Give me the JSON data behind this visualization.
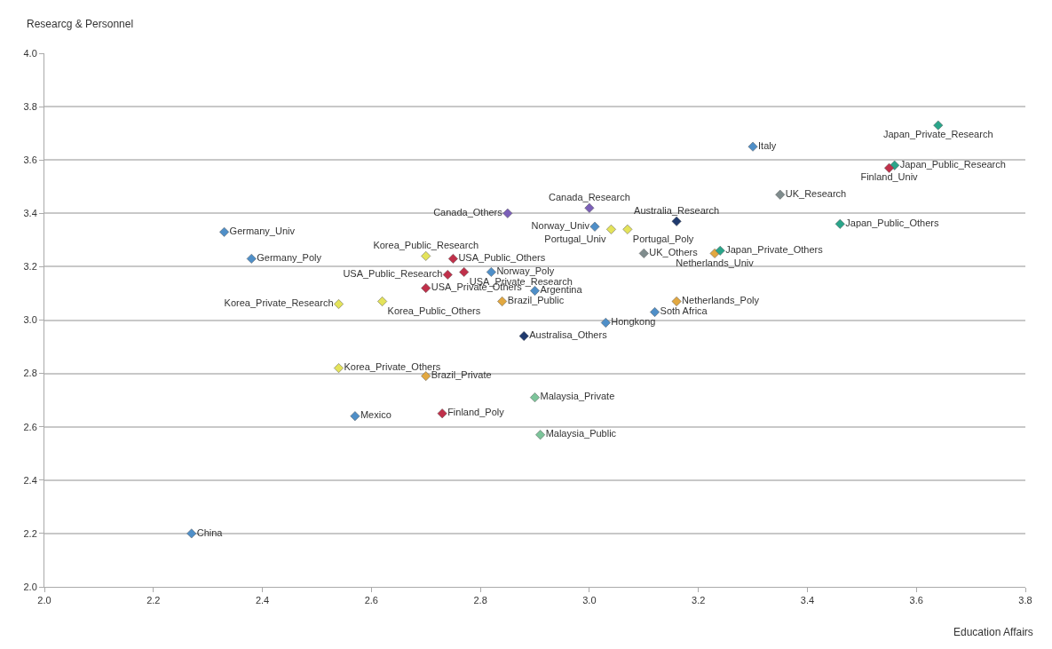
{
  "chart_data": {
    "type": "scatter",
    "xlabel": "Education Affairs",
    "ylabel": "Researcg & Personnel",
    "xlim": [
      2.0,
      3.8
    ],
    "ylim": [
      2.0,
      4.0
    ],
    "xticks": [
      {
        "value": 2.0,
        "label": "2.0"
      },
      {
        "value": 2.2,
        "label": "2.2"
      },
      {
        "value": 2.4,
        "label": "2.4"
      },
      {
        "value": 2.6,
        "label": "2.6"
      },
      {
        "value": 2.8,
        "label": "2.8"
      },
      {
        "value": 3.0,
        "label": "3.0"
      },
      {
        "value": 3.2,
        "label": "3.2"
      },
      {
        "value": 3.4,
        "label": "3.4"
      },
      {
        "value": 3.6,
        "label": "3.6"
      },
      {
        "value": 3.8,
        "label": "3.8"
      }
    ],
    "yticks": [
      {
        "value": 2.0,
        "label": "2.0"
      },
      {
        "value": 2.2,
        "label": "2.2"
      },
      {
        "value": 2.4,
        "label": "2.4"
      },
      {
        "value": 2.6,
        "label": "2.6"
      },
      {
        "value": 2.8,
        "label": "2.8"
      },
      {
        "value": 3.0,
        "label": "3.0"
      },
      {
        "value": 3.2,
        "label": "3.2"
      },
      {
        "value": 3.4,
        "label": "3.4"
      },
      {
        "value": 3.6,
        "label": "3.6"
      },
      {
        "value": 3.8,
        "label": "3.8"
      },
      {
        "value": 4.0,
        "label": "4.0"
      }
    ],
    "grid": "y",
    "legend": false,
    "marker": "diamond",
    "series": [
      {
        "name": "Germany_Univ",
        "color": "#4f8fc8",
        "x": [
          2.33
        ],
        "values": [
          3.33
        ]
      },
      {
        "name": "Germany_Poly",
        "color": "#4f8fc8",
        "x": [
          2.38
        ],
        "values": [
          3.23
        ]
      },
      {
        "name": "Korea_Public_Research",
        "color": "#e4e35a",
        "x": [
          2.7
        ],
        "values": [
          3.24
        ]
      },
      {
        "name": "USA_Public_Others",
        "color": "#c0304a",
        "x": [
          2.75
        ],
        "values": [
          3.23
        ]
      },
      {
        "name": "USA_Public_Research",
        "color": "#c0304a",
        "x": [
          2.74
        ],
        "values": [
          3.17
        ]
      },
      {
        "name": "USA_Private_Research",
        "color": "#c0304a",
        "x": [
          2.77
        ],
        "values": [
          3.18
        ]
      },
      {
        "name": "USA_Private_Others",
        "color": "#c0304a",
        "x": [
          2.7
        ],
        "values": [
          3.12
        ]
      },
      {
        "name": "Korea_Private_Research",
        "color": "#e4e35a",
        "x": [
          2.54
        ],
        "values": [
          3.06
        ]
      },
      {
        "name": "Korea_Public_Others",
        "color": "#e4e35a",
        "x": [
          2.62
        ],
        "values": [
          3.07
        ]
      },
      {
        "name": "Canada_Others",
        "color": "#7b5fb8",
        "x": [
          2.85
        ],
        "values": [
          3.4
        ]
      },
      {
        "name": "Norway_Poly",
        "color": "#4f8fc8",
        "x": [
          2.82
        ],
        "values": [
          3.18
        ]
      },
      {
        "name": "Argentina",
        "color": "#4f8fc8",
        "x": [
          2.9
        ],
        "values": [
          3.11
        ]
      },
      {
        "name": "Brazil_Public",
        "color": "#e2a840",
        "x": [
          2.84
        ],
        "values": [
          3.07
        ]
      },
      {
        "name": "Canada_Research",
        "color": "#7b5fb8",
        "x": [
          3.0
        ],
        "values": [
          3.42
        ]
      },
      {
        "name": "Norway_Univ",
        "color": "#4f8fc8",
        "x": [
          3.01
        ],
        "values": [
          3.35
        ]
      },
      {
        "name": "Portugal_Univ",
        "color": "#e4e35a",
        "x": [
          3.04
        ],
        "values": [
          3.34
        ]
      },
      {
        "name": "Portugal_Poly",
        "color": "#e4e35a",
        "x": [
          3.07
        ],
        "values": [
          3.34
        ]
      },
      {
        "name": "Australia_Research",
        "color": "#1f3a6e",
        "x": [
          3.16
        ],
        "values": [
          3.37
        ]
      },
      {
        "name": "UK_Others",
        "color": "#7f8c8d",
        "x": [
          3.1
        ],
        "values": [
          3.25
        ]
      },
      {
        "name": "Netherlands_Univ",
        "color": "#e2a840",
        "x": [
          3.23
        ],
        "values": [
          3.25
        ]
      },
      {
        "name": "Japan_Private_Others",
        "color": "#2aa58a",
        "x": [
          3.24
        ],
        "values": [
          3.26
        ]
      },
      {
        "name": "Netherlands_Poly",
        "color": "#e2a840",
        "x": [
          3.16
        ],
        "values": [
          3.07
        ]
      },
      {
        "name": "Soth Africa",
        "color": "#4f8fc8",
        "x": [
          3.12
        ],
        "values": [
          3.03
        ]
      },
      {
        "name": "Hongkong",
        "color": "#4f8fc8",
        "x": [
          3.03
        ],
        "values": [
          2.99
        ]
      },
      {
        "name": "Australisa_Others",
        "color": "#1f3a6e",
        "x": [
          2.88
        ],
        "values": [
          2.94
        ]
      },
      {
        "name": "Italy",
        "color": "#4f8fc8",
        "x": [
          3.3
        ],
        "values": [
          3.65
        ]
      },
      {
        "name": "UK_Research",
        "color": "#7f8c8d",
        "x": [
          3.35
        ],
        "values": [
          3.47
        ]
      },
      {
        "name": "Japan_Public_Research",
        "color": "#2aa58a",
        "x": [
          3.56
        ],
        "values": [
          3.58
        ]
      },
      {
        "name": "Finland_Univ",
        "color": "#c0304a",
        "x": [
          3.55
        ],
        "values": [
          3.57
        ]
      },
      {
        "name": "Japan_Private_Research",
        "color": "#2aa58a",
        "x": [
          3.64
        ],
        "values": [
          3.73
        ]
      },
      {
        "name": "Japan_Public_Others",
        "color": "#2aa58a",
        "x": [
          3.46
        ],
        "values": [
          3.36
        ]
      },
      {
        "name": "Korea_Private_Others",
        "color": "#e4e35a",
        "x": [
          2.54
        ],
        "values": [
          2.82
        ]
      },
      {
        "name": "Brazil_Private",
        "color": "#e2a840",
        "x": [
          2.7
        ],
        "values": [
          2.79
        ]
      },
      {
        "name": "Malaysia_Private",
        "color": "#7cc49a",
        "x": [
          2.9
        ],
        "values": [
          2.71
        ]
      },
      {
        "name": "Mexico",
        "color": "#4f8fc8",
        "x": [
          2.57
        ],
        "values": [
          2.64
        ]
      },
      {
        "name": "Finland_Poly",
        "color": "#c0304a",
        "x": [
          2.73
        ],
        "values": [
          2.65
        ]
      },
      {
        "name": "Malaysia_Public",
        "color": "#7cc49a",
        "x": [
          2.91
        ],
        "values": [
          2.57
        ]
      },
      {
        "name": "China",
        "color": "#4f8fc8",
        "x": [
          2.27
        ],
        "values": [
          2.2
        ]
      }
    ]
  }
}
